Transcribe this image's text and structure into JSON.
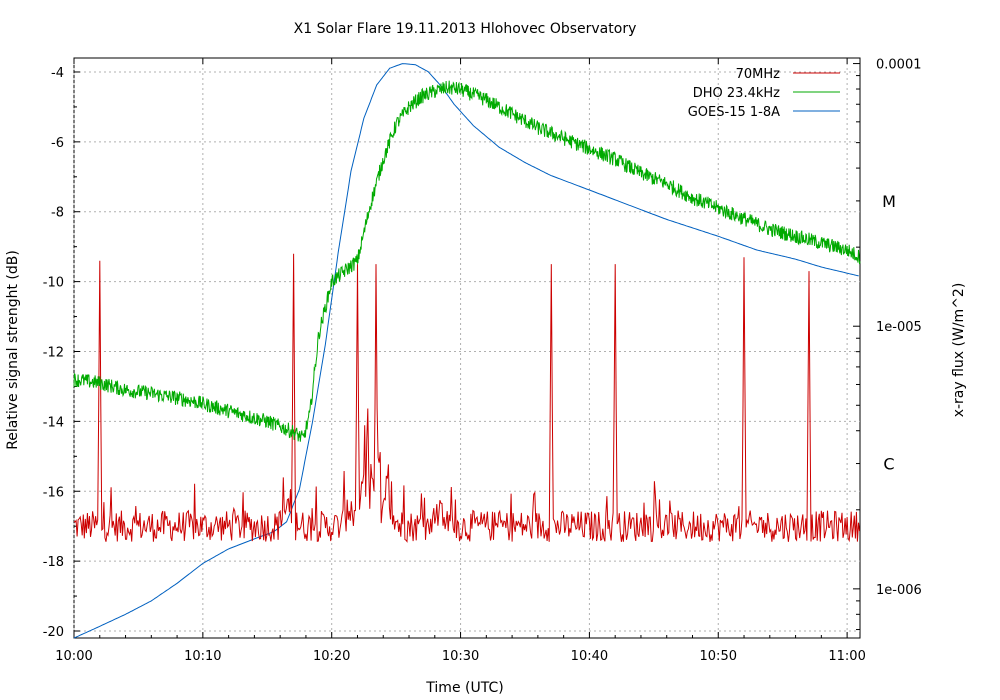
{
  "chart_data": {
    "type": "line",
    "title": "X1 Solar Flare 19.11.2013 Hlohovec Observatory",
    "xlabel": "Time (UTC)",
    "ylabel": "Relative signal strenght (dB)",
    "y2label": "x-ray flux (W/m^2)",
    "x_unit": "minutes after 10:00 UTC",
    "xlim": [
      0,
      61
    ],
    "ylim": [
      -20.2,
      -3.6
    ],
    "y2lim": [
      6.5e-07,
      0.000105
    ],
    "y2_scale": "log",
    "grid": true,
    "legend_position": "top-right",
    "x_ticks": [
      {
        "v": 0,
        "label": "10:00"
      },
      {
        "v": 10,
        "label": "10:10"
      },
      {
        "v": 20,
        "label": "10:20"
      },
      {
        "v": 30,
        "label": "10:30"
      },
      {
        "v": 40,
        "label": "10:40"
      },
      {
        "v": 50,
        "label": "10:50"
      },
      {
        "v": 60,
        "label": "11:00"
      }
    ],
    "y_ticks": [
      {
        "v": -4,
        "label": "-4"
      },
      {
        "v": -6,
        "label": "-6"
      },
      {
        "v": -8,
        "label": "-8"
      },
      {
        "v": -10,
        "label": "-10"
      },
      {
        "v": -12,
        "label": "-12"
      },
      {
        "v": -14,
        "label": "-14"
      },
      {
        "v": -16,
        "label": "-16"
      },
      {
        "v": -18,
        "label": "-18"
      },
      {
        "v": -20,
        "label": "-20"
      }
    ],
    "y2_ticks": [
      {
        "v": 0.0001,
        "label": "0.0001"
      },
      {
        "v": 1e-05,
        "label": "1e-005"
      },
      {
        "v": 1e-06,
        "label": "1e-006"
      }
    ],
    "flare_class_labels": [
      {
        "label": "M",
        "flux": 3e-05
      },
      {
        "label": "C",
        "flux": 3e-06
      }
    ],
    "series": [
      {
        "name": "70MHz",
        "color": "#cc0000",
        "axis": "left",
        "baseline": -17.0,
        "noise": 0.45,
        "spikes": [
          {
            "x": 2.0,
            "y": -9.4
          },
          {
            "x": 17.0,
            "y": -9.2
          },
          {
            "x": 22.0,
            "y": -9.5
          },
          {
            "x": 23.4,
            "y": -9.5
          },
          {
            "x": 37.0,
            "y": -9.5
          },
          {
            "x": 42.0,
            "y": -9.5
          },
          {
            "x": 52.0,
            "y": -9.3
          },
          {
            "x": 57.0,
            "y": -9.7
          }
        ],
        "bursts": [
          {
            "x": 16.6,
            "y": -16.0
          },
          {
            "x": 21.5,
            "y": -16.0
          },
          {
            "x": 22.8,
            "y": -12.0
          },
          {
            "x": 23.8,
            "y": -14.5
          },
          {
            "x": 24.5,
            "y": -15.5
          },
          {
            "x": 28.5,
            "y": -16.2
          }
        ]
      },
      {
        "name": "DHO 23.4kHz",
        "color": "#00aa00",
        "axis": "left",
        "noise": 0.35,
        "points": [
          [
            0,
            -12.8
          ],
          [
            2,
            -12.9
          ],
          [
            4,
            -13.1
          ],
          [
            6,
            -13.2
          ],
          [
            9,
            -13.4
          ],
          [
            12,
            -13.7
          ],
          [
            15,
            -14.0
          ],
          [
            17,
            -14.3
          ],
          [
            17.8,
            -14.5
          ],
          [
            18.3,
            -13.8
          ],
          [
            19,
            -11.5
          ],
          [
            20,
            -10.0
          ],
          [
            21,
            -9.7
          ],
          [
            22,
            -9.4
          ],
          [
            23,
            -7.8
          ],
          [
            24,
            -6.5
          ],
          [
            25,
            -5.5
          ],
          [
            26,
            -5.0
          ],
          [
            27,
            -4.7
          ],
          [
            28,
            -4.55
          ],
          [
            29,
            -4.45
          ],
          [
            30,
            -4.5
          ],
          [
            32,
            -4.8
          ],
          [
            34,
            -5.2
          ],
          [
            36,
            -5.6
          ],
          [
            38,
            -5.9
          ],
          [
            40,
            -6.2
          ],
          [
            42,
            -6.5
          ],
          [
            44,
            -6.9
          ],
          [
            46,
            -7.2
          ],
          [
            48,
            -7.6
          ],
          [
            50,
            -7.9
          ],
          [
            52,
            -8.2
          ],
          [
            54,
            -8.5
          ],
          [
            56,
            -8.7
          ],
          [
            58,
            -8.9
          ],
          [
            60,
            -9.1
          ],
          [
            61,
            -9.3
          ]
        ]
      },
      {
        "name": "GOES-15 1-8A",
        "color": "#0060c0",
        "axis": "right",
        "points": [
          [
            0,
            6.5e-07
          ],
          [
            2,
            7.2e-07
          ],
          [
            4,
            8e-07
          ],
          [
            6,
            9e-07
          ],
          [
            8,
            1.05e-06
          ],
          [
            10,
            1.25e-06
          ],
          [
            12,
            1.42e-06
          ],
          [
            14,
            1.55e-06
          ],
          [
            15.5,
            1.65e-06
          ],
          [
            16.5,
            1.8e-06
          ],
          [
            17.5,
            2.4e-06
          ],
          [
            18.5,
            4.3e-06
          ],
          [
            19.5,
            8.5e-06
          ],
          [
            20.5,
            1.9e-05
          ],
          [
            21.5,
            3.9e-05
          ],
          [
            22.5,
            6.2e-05
          ],
          [
            23.5,
            8.3e-05
          ],
          [
            24.5,
            9.6e-05
          ],
          [
            25.5,
            0.0001
          ],
          [
            26.5,
            9.9e-05
          ],
          [
            27.5,
            9.3e-05
          ],
          [
            28.5,
            8.2e-05
          ],
          [
            29.5,
            7e-05
          ],
          [
            31,
            5.8e-05
          ],
          [
            33,
            4.8e-05
          ],
          [
            35,
            4.2e-05
          ],
          [
            37,
            3.75e-05
          ],
          [
            40,
            3.3e-05
          ],
          [
            43,
            2.9e-05
          ],
          [
            46,
            2.55e-05
          ],
          [
            50,
            2.2e-05
          ],
          [
            53,
            1.95e-05
          ],
          [
            56,
            1.8e-05
          ],
          [
            58,
            1.68e-05
          ],
          [
            61,
            1.55e-05
          ]
        ]
      }
    ]
  }
}
